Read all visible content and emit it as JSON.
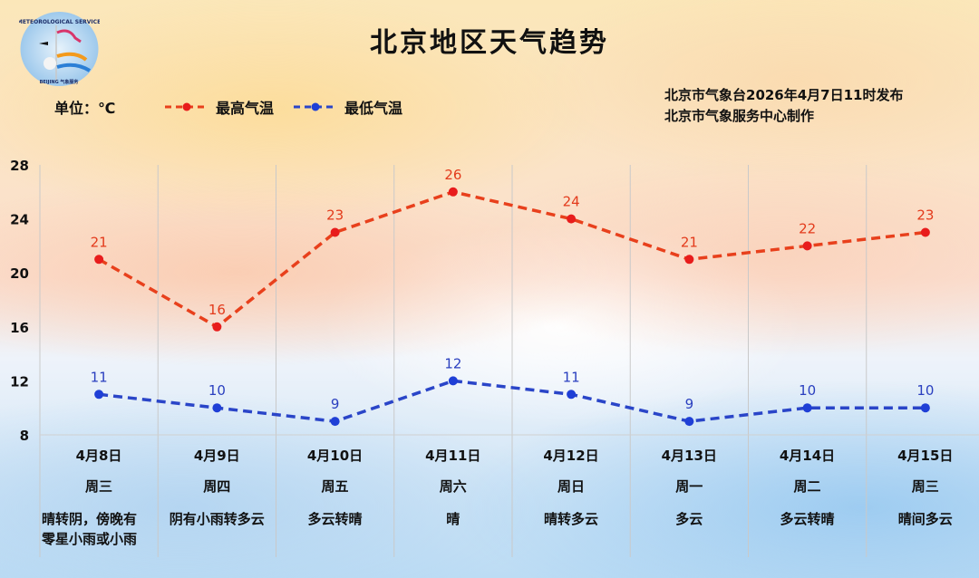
{
  "header": {
    "title": "北京地区天气趋势",
    "unit_label": "单位：℃",
    "logo": {
      "name": "beijing-meteorological-service-logo",
      "text_top": "METEOROLOGICAL SERVICE",
      "text_bottom": "BEIJING 气象服务"
    },
    "issuer_line1": "北京市气象台2026年4月7日11时发布",
    "issuer_line2": "北京市气象服务中心制作"
  },
  "legend": {
    "high": {
      "label": "最高气温",
      "color": "#e8401c"
    },
    "low": {
      "label": "最低气温",
      "color": "#2a45c8"
    }
  },
  "days": [
    {
      "date": "4月8日",
      "weekday": "周三",
      "weather": "晴转阴，傍晚有\n零星小雨或小雨",
      "high": 21,
      "low": 11
    },
    {
      "date": "4月9日",
      "weekday": "周四",
      "weather": "阴有小雨转多云",
      "high": 16,
      "low": 10
    },
    {
      "date": "4月10日",
      "weekday": "周五",
      "weather": "多云转晴",
      "high": 23,
      "low": 9
    },
    {
      "date": "4月11日",
      "weekday": "周六",
      "weather": "晴",
      "high": 26,
      "low": 12
    },
    {
      "date": "4月12日",
      "weekday": "周日",
      "weather": "晴转多云",
      "high": 24,
      "low": 11
    },
    {
      "date": "4月13日",
      "weekday": "周一",
      "weather": "多云",
      "high": 21,
      "low": 9
    },
    {
      "date": "4月14日",
      "weekday": "周二",
      "weather": "多云转晴",
      "high": 22,
      "low": 10
    },
    {
      "date": "4月15日",
      "weekday": "周三",
      "weather": "晴间多云",
      "high": 23,
      "low": 10
    }
  ],
  "chart_data": {
    "type": "line",
    "title": "北京地区天气趋势",
    "xlabel": "",
    "ylabel": "单位：℃",
    "categories": [
      "4月8日",
      "4月9日",
      "4月10日",
      "4月11日",
      "4月12日",
      "4月13日",
      "4月14日",
      "4月15日"
    ],
    "weekdays": [
      "周三",
      "周四",
      "周五",
      "周六",
      "周日",
      "周一",
      "周二",
      "周三"
    ],
    "weather": [
      "晴转阴，傍晚有零星小雨或小雨",
      "阴有小雨转多云",
      "多云转晴",
      "晴",
      "晴转多云",
      "多云",
      "多云转晴",
      "晴间多云"
    ],
    "series": [
      {
        "name": "最高气温",
        "color": "#e8401c",
        "style": "dashed",
        "values": [
          21,
          16,
          23,
          26,
          24,
          21,
          22,
          23
        ]
      },
      {
        "name": "最低气温",
        "color": "#2a45c8",
        "style": "dashed",
        "values": [
          11,
          10,
          9,
          12,
          11,
          9,
          10,
          10
        ]
      }
    ],
    "yticks": [
      28,
      24,
      20,
      16,
      12,
      8
    ],
    "ylim": [
      8,
      28
    ],
    "grid": {
      "vertical": true,
      "horizontal": false
    },
    "legend_position": "top",
    "annotations": [
      "北京市气象台2026年4月7日11时发布",
      "北京市气象服务中心制作"
    ]
  }
}
